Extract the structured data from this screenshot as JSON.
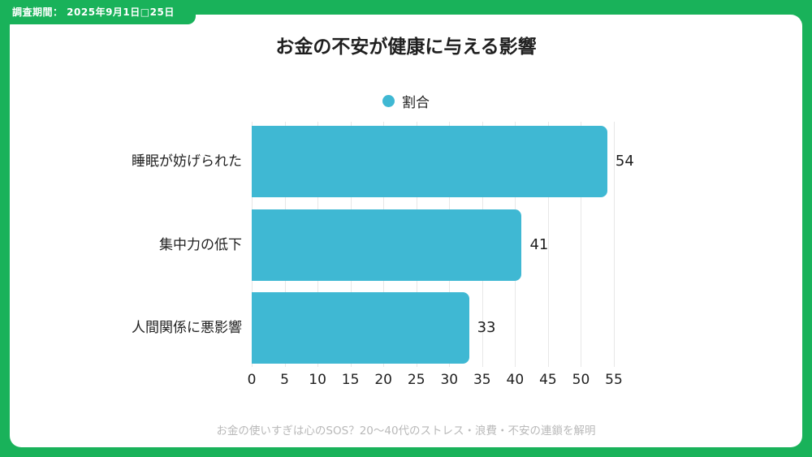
{
  "badge": {
    "label": "調査期間： 2025年9月1日□25日"
  },
  "title": "お金の不安が健康に与える影響",
  "legend": {
    "label": "割合"
  },
  "footer": "お金の使いすぎは心のSOS？20〜40代のストレス・浪費・不安の連鎖を解明",
  "colors": {
    "frame_green": "#19b25a",
    "bar_teal": "#3fb8d3",
    "gridline": "#e7e7e7",
    "footer_gray": "#b9b9b9",
    "text": "#1f1f1f"
  },
  "chart_data": {
    "type": "bar",
    "orientation": "horizontal",
    "title": "お金の不安が健康に与える影響",
    "series_name": "割合",
    "categories": [
      "睡眠が妨げられた",
      "集中力の低下",
      "人間関係に悪影響"
    ],
    "values": [
      54,
      41,
      33
    ],
    "xlim": [
      0,
      55
    ],
    "xticks": [
      0,
      5,
      10,
      15,
      20,
      25,
      30,
      35,
      40,
      45,
      50,
      55
    ],
    "grid": true,
    "legend_position": "top",
    "value_labels": true
  }
}
